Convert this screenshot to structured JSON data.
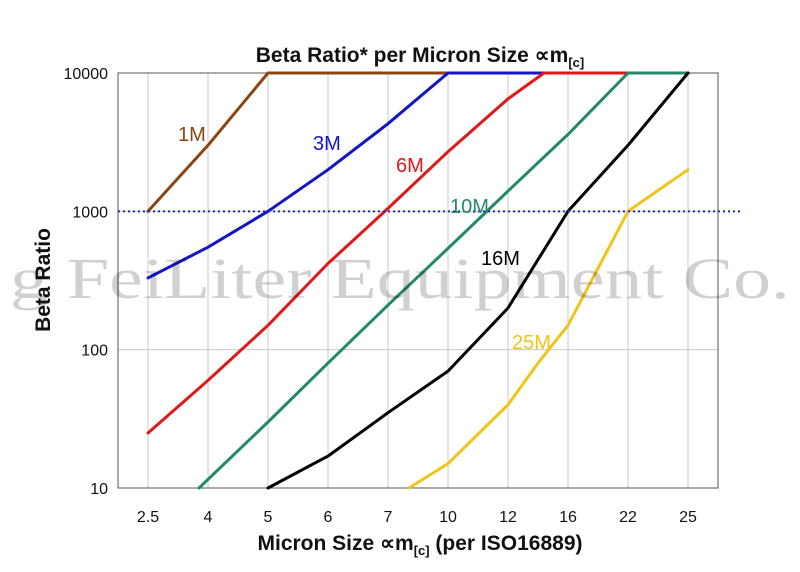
{
  "watermark": "g FeiLiter Equipment Co.",
  "chart_data": {
    "type": "line",
    "title": "Beta Ratio* per Micron Size ∝m",
    "title_sub": "[c]",
    "xlabel": "Micron Size ∝m",
    "xlabel_sub": "[c]",
    "xlabel_suffix": " (per ISO16889)",
    "ylabel": "Beta Ratio",
    "yscale": "log",
    "ylim": [
      10,
      10000
    ],
    "ytick_labels": [
      "10",
      "100",
      "1000",
      "10000"
    ],
    "ytick_values": [
      10,
      100,
      1000,
      10000
    ],
    "categories": [
      "2.5",
      "4",
      "5",
      "6",
      "7",
      "10",
      "12",
      "16",
      "22",
      "25"
    ],
    "grid": true,
    "reference_line": {
      "y": 1000,
      "color": "#1f2db0",
      "style": "dotted"
    },
    "series": [
      {
        "name": "1M",
        "color": "#8b4513",
        "points": [
          [
            0,
            1000
          ],
          [
            1,
            3000
          ],
          [
            2,
            10000
          ],
          [
            9,
            10000
          ]
        ]
      },
      {
        "name": "3M",
        "color": "#1414c8",
        "points": [
          [
            0,
            330
          ],
          [
            1,
            550
          ],
          [
            2,
            1000
          ],
          [
            3,
            2000
          ],
          [
            4,
            4300
          ],
          [
            5,
            10000
          ],
          [
            9,
            10000
          ]
        ]
      },
      {
        "name": "6M",
        "color": "#e01818",
        "points": [
          [
            0,
            25
          ],
          [
            1,
            60
          ],
          [
            2,
            150
          ],
          [
            3,
            420
          ],
          [
            4,
            1050
          ],
          [
            5,
            2700
          ],
          [
            6,
            6500
          ],
          [
            6.6,
            10000
          ],
          [
            9,
            10000
          ]
        ]
      },
      {
        "name": "10M",
        "color": "#23896a",
        "points": [
          [
            0.85,
            10
          ],
          [
            2,
            30
          ],
          [
            3,
            80
          ],
          [
            4,
            210
          ],
          [
            5,
            540
          ],
          [
            6,
            1400
          ],
          [
            7,
            3600
          ],
          [
            8,
            10000
          ],
          [
            9,
            10000
          ]
        ]
      },
      {
        "name": "16M",
        "color": "#000000",
        "points": [
          [
            2,
            10
          ],
          [
            3,
            17
          ],
          [
            4,
            35
          ],
          [
            5,
            70
          ],
          [
            6,
            200
          ],
          [
            7,
            1000
          ],
          [
            8,
            3000
          ],
          [
            9,
            10000
          ]
        ]
      },
      {
        "name": "25M",
        "color": "#f0c419",
        "points": [
          [
            4.35,
            10
          ],
          [
            5,
            15
          ],
          [
            6,
            40
          ],
          [
            6.5,
            80
          ],
          [
            7,
            150
          ],
          [
            8,
            1000
          ],
          [
            9,
            2000
          ]
        ]
      }
    ],
    "labels": [
      {
        "text": "1M",
        "color": "#8b4513"
      },
      {
        "text": "3M",
        "color": "#1414c8"
      },
      {
        "text": "6M",
        "color": "#e01818"
      },
      {
        "text": "10M",
        "color": "#23896a"
      },
      {
        "text": "16M",
        "color": "#000000"
      },
      {
        "text": "25M",
        "color": "#f0c419"
      }
    ]
  }
}
